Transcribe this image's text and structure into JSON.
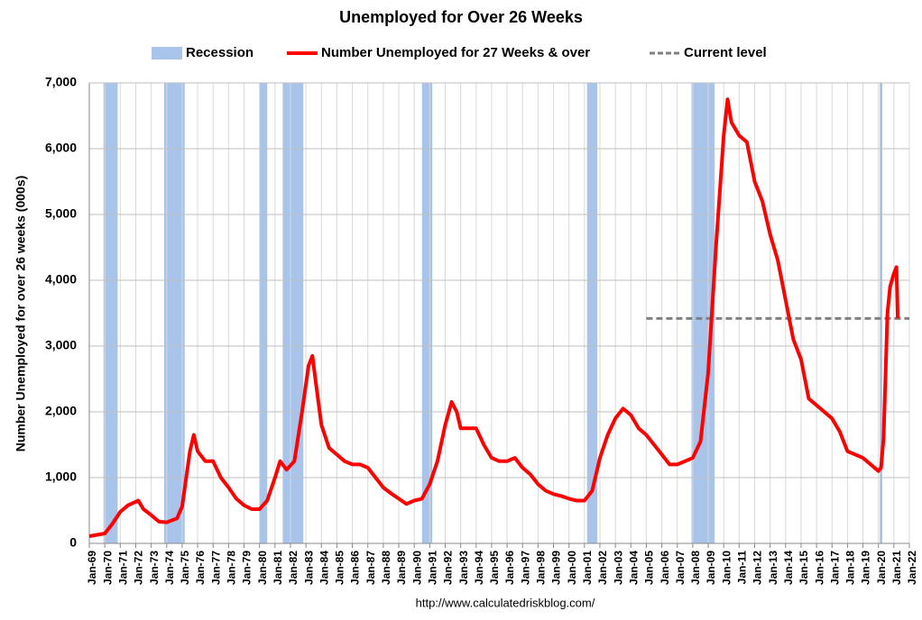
{
  "chart_data": {
    "type": "line",
    "title": "Unemployed for Over 26 Weeks",
    "y_label": "Number Unemployed for over 26 weeks (000s)",
    "source": "http://www.calculatedriskblog.com/",
    "ylim": [
      0,
      7000
    ],
    "yticks": [
      0,
      {
        "value": 1000,
        "label": "1,000"
      },
      {
        "value": 2000,
        "label": "2,000"
      },
      {
        "value": 3000,
        "label": "3,000"
      },
      {
        "value": 4000,
        "label": "4,000"
      },
      {
        "value": 5000,
        "label": "5,000"
      },
      {
        "value": 6000,
        "label": "6,000"
      },
      {
        "value": 7000,
        "label": "7,000"
      }
    ],
    "xlim": [
      "Jan-69",
      "Jan-22"
    ],
    "xticks": [
      "Jan-69",
      "Jan-70",
      "Jan-71",
      "Jan-72",
      "Jan-73",
      "Jan-74",
      "Jan-75",
      "Jan-76",
      "Jan-77",
      "Jan-78",
      "Jan-79",
      "Jan-80",
      "Jan-81",
      "Jan-82",
      "Jan-83",
      "Jan-84",
      "Jan-85",
      "Jan-86",
      "Jan-87",
      "Jan-88",
      "Jan-89",
      "Jan-90",
      "Jan-91",
      "Jan-92",
      "Jan-93",
      "Jan-94",
      "Jan-95",
      "Jan-96",
      "Jan-97",
      "Jan-98",
      "Jan-99",
      "Jan-00",
      "Jan-01",
      "Jan-02",
      "Jan-03",
      "Jan-04",
      "Jan-05",
      "Jan-06",
      "Jan-07",
      "Jan-08",
      "Jan-09",
      "Jan-10",
      "Jan-11",
      "Jan-12",
      "Jan-13",
      "Jan-14",
      "Jan-15",
      "Jan-16",
      "Jan-17",
      "Jan-18",
      "Jan-19",
      "Jan-20",
      "Jan-21",
      "Jan-22"
    ],
    "grid": true,
    "recession": {
      "name": "Recession",
      "color": "#a9c4eb",
      "periods": [
        [
          "Dec-69",
          "Nov-70"
        ],
        [
          "Nov-73",
          "Mar-75"
        ],
        [
          "Jan-80",
          "Jul-80"
        ],
        [
          "Jul-81",
          "Nov-82"
        ],
        [
          "Jul-90",
          "Mar-91"
        ],
        [
          "Mar-01",
          "Nov-01"
        ],
        [
          "Dec-07",
          "Jun-09"
        ],
        [
          "Feb-20",
          "Apr-20"
        ]
      ]
    },
    "series": [
      {
        "name": "Number Unemployed for 27 Weeks & over",
        "color": "#ff0000",
        "x": [
          "Jan-69",
          "Jan-70",
          "Jul-70",
          "Jan-71",
          "Jul-71",
          "Mar-72",
          "Jul-72",
          "Jan-73",
          "Jul-73",
          "Jan-74",
          "Sep-74",
          "Jan-75",
          "Jul-75",
          "Oct-75",
          "Jan-76",
          "Jul-76",
          "Jan-77",
          "Jul-77",
          "Jan-78",
          "Jul-78",
          "Jan-79",
          "Jul-79",
          "Jan-80",
          "Jul-80",
          "Jan-81",
          "May-81",
          "Oct-81",
          "Apr-82",
          "Oct-82",
          "Mar-83",
          "Jun-83",
          "Sep-83",
          "Jan-84",
          "Jul-84",
          "Jan-85",
          "Jul-85",
          "Jan-86",
          "Jul-86",
          "Jan-87",
          "Jul-87",
          "Jan-88",
          "Jul-88",
          "Jan-89",
          "Jul-89",
          "Jan-90",
          "Jul-90",
          "Jan-91",
          "Jul-91",
          "Jan-92",
          "Jun-92",
          "Oct-92",
          "Jan-93",
          "Jul-93",
          "Jan-94",
          "Jul-94",
          "Jan-95",
          "Jul-95",
          "Jan-96",
          "Jul-96",
          "Jan-97",
          "Jul-97",
          "Jan-98",
          "Jul-98",
          "Jan-99",
          "Jul-99",
          "Jan-00",
          "Jul-00",
          "Jan-01",
          "Jul-01",
          "Jan-02",
          "Jul-02",
          "Jan-03",
          "Jul-03",
          "Jan-04",
          "Jul-04",
          "Jan-05",
          "Jul-05",
          "Jan-06",
          "Jul-06",
          "Jan-07",
          "Jul-07",
          "Jan-08",
          "Jul-08",
          "Jan-09",
          "Jul-09",
          "Jan-10",
          "Apr-10",
          "Jul-10",
          "Jan-11",
          "Jul-11",
          "Jan-12",
          "Jul-12",
          "Jan-13",
          "Jul-13",
          "Jan-14",
          "Jul-14",
          "Jan-15",
          "Jul-15",
          "Jan-16",
          "Jul-16",
          "Jan-17",
          "Jul-17",
          "Jan-18",
          "Jul-18",
          "Jan-19",
          "Jul-19",
          "Jan-20",
          "Mar-20",
          "May-20",
          "Aug-20",
          "Oct-20",
          "Jan-21",
          "Mar-21",
          "Apr-21"
        ],
        "values": [
          110,
          150,
          300,
          480,
          580,
          650,
          520,
          430,
          330,
          320,
          380,
          560,
          1400,
          1650,
          1400,
          1250,
          1250,
          1000,
          850,
          680,
          580,
          520,
          520,
          650,
          1000,
          1250,
          1120,
          1250,
          2000,
          2700,
          2850,
          2400,
          1800,
          1450,
          1350,
          1250,
          1200,
          1200,
          1150,
          1000,
          850,
          760,
          680,
          600,
          650,
          680,
          900,
          1250,
          1800,
          2150,
          2000,
          1750,
          1750,
          1750,
          1500,
          1300,
          1250,
          1250,
          1300,
          1150,
          1050,
          900,
          800,
          750,
          720,
          680,
          650,
          650,
          800,
          1300,
          1650,
          1900,
          2050,
          1950,
          1750,
          1650,
          1500,
          1350,
          1200,
          1200,
          1250,
          1300,
          1550,
          2600,
          4500,
          6200,
          6750,
          6400,
          6200,
          6100,
          5500,
          5200,
          4700,
          4300,
          3700,
          3100,
          2800,
          2200,
          2100,
          2000,
          1900,
          1700,
          1400,
          1350,
          1300,
          1200,
          1100,
          1150,
          1600,
          3500,
          3900,
          4100,
          4200,
          3420
        ]
      }
    ],
    "current_level": {
      "name": "Current level",
      "color": "#808080",
      "value": 3420,
      "start": "Jan-05"
    }
  }
}
